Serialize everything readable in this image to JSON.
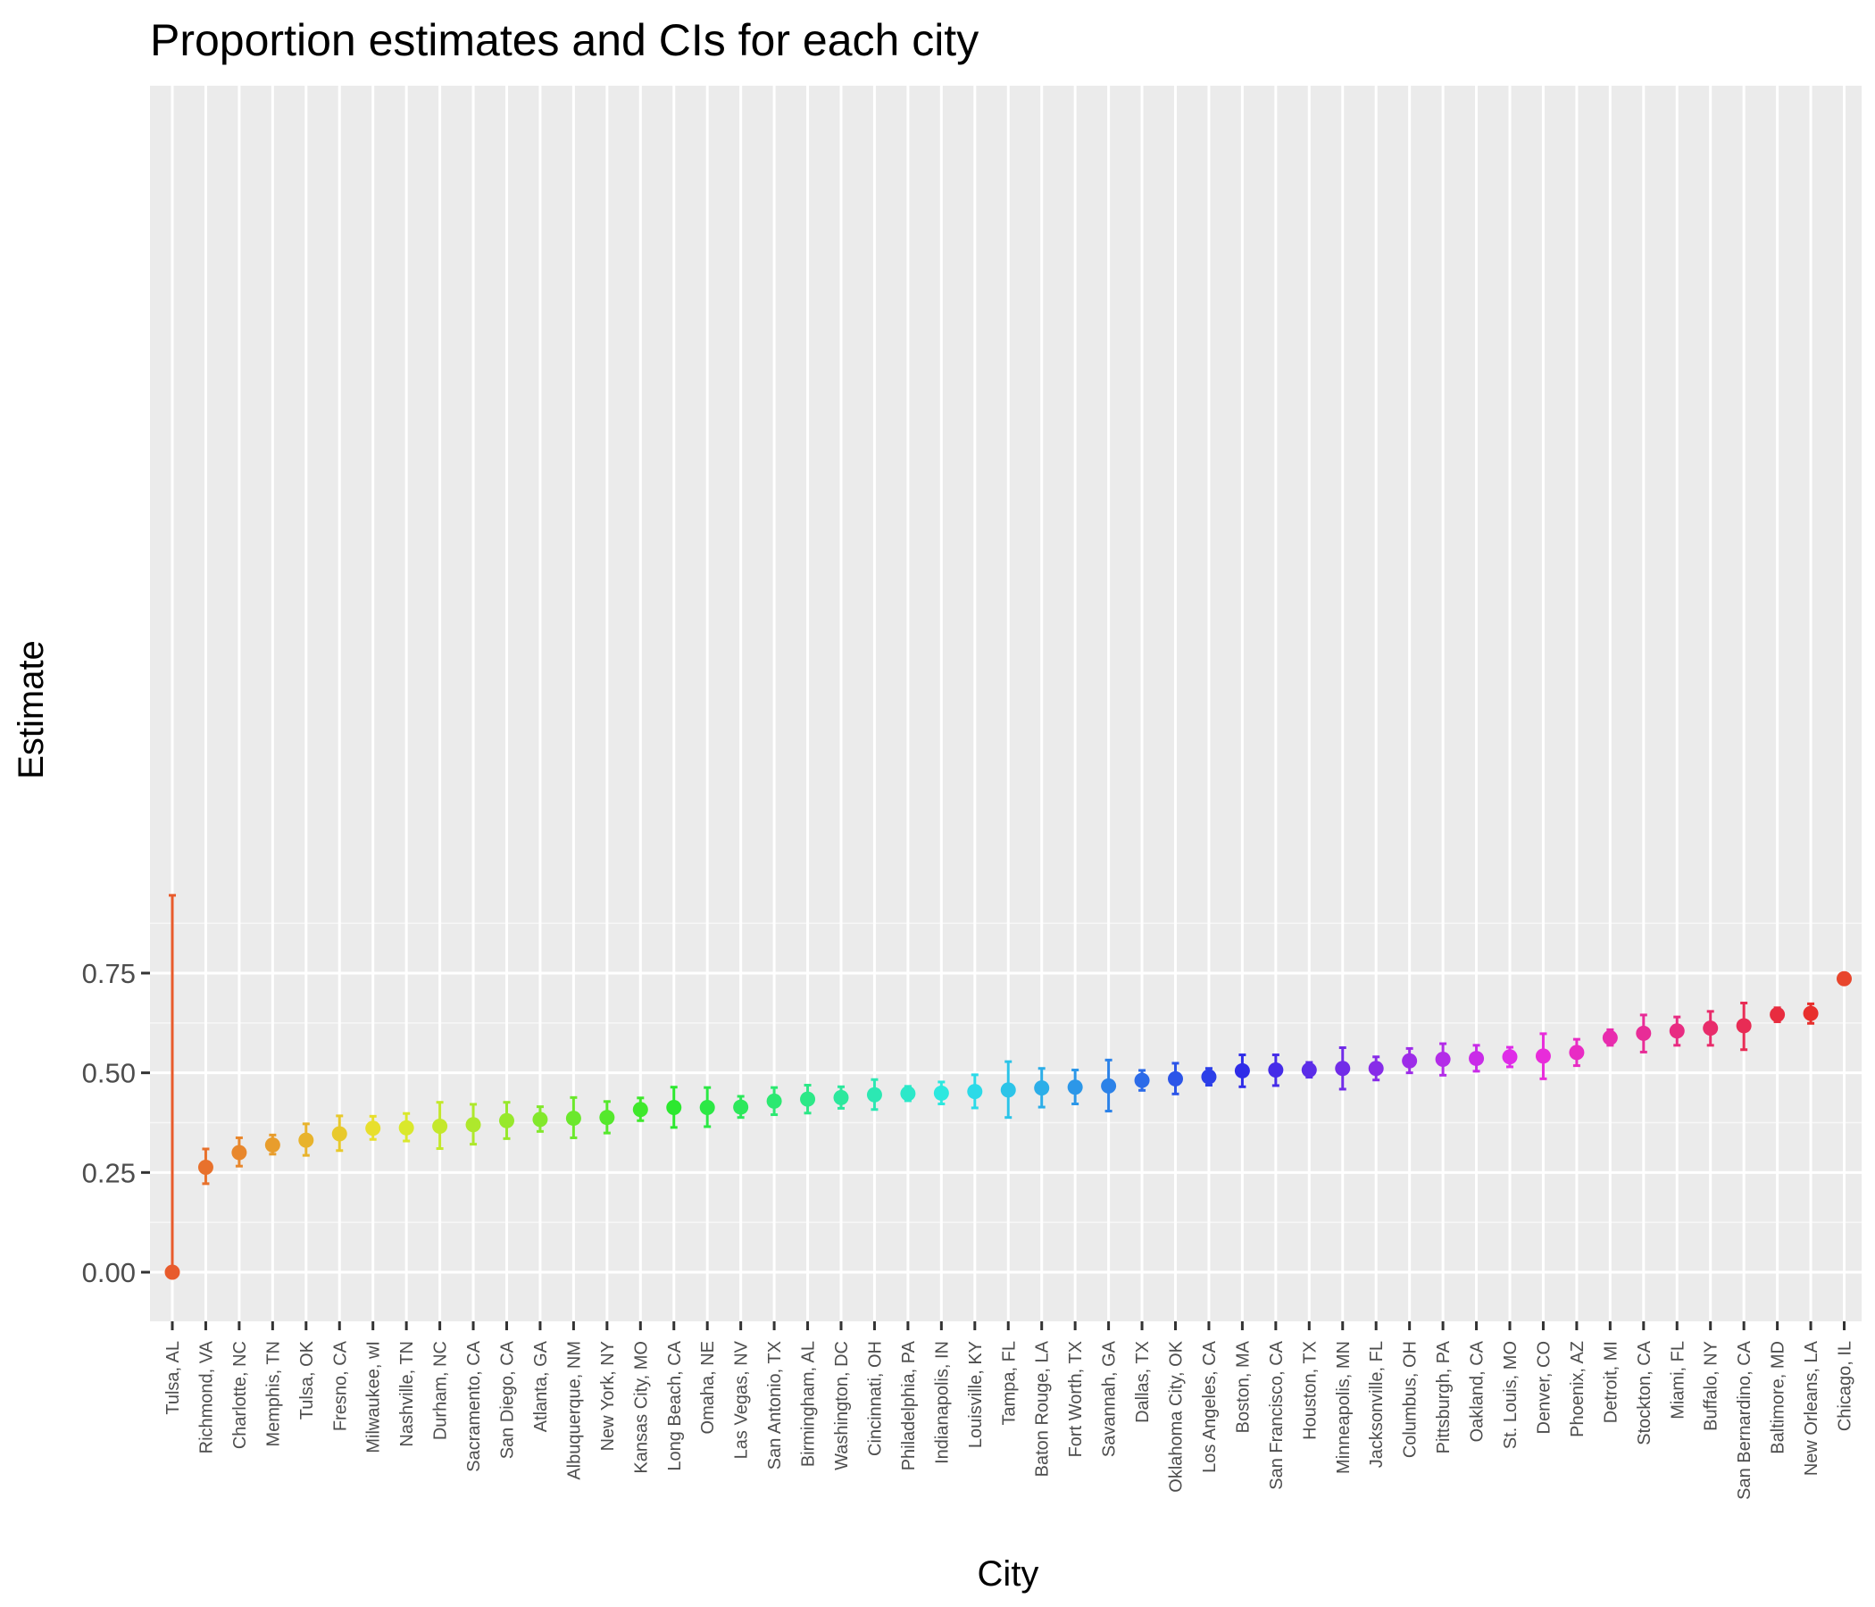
{
  "chart_data": {
    "type": "scatter",
    "title": "Proportion estimates and CIs for each city",
    "xlabel": "City",
    "ylabel": "Estimate",
    "ylim": [
      -0.07,
      0.95
    ],
    "yticks": [
      0.0,
      0.25,
      0.5,
      0.75
    ],
    "ytick_labels": [
      "0.00",
      "0.25",
      "0.50",
      "0.75"
    ],
    "grid": true,
    "legend": "none",
    "points": [
      {
        "city": "Tulsa, AL",
        "estimate": 0.0,
        "lower": 0.0,
        "upper": 0.945
      },
      {
        "city": "Richmond, VA",
        "estimate": 0.263,
        "lower": 0.222,
        "upper": 0.309
      },
      {
        "city": "Charlotte, NC",
        "estimate": 0.3,
        "lower": 0.266,
        "upper": 0.337
      },
      {
        "city": "Memphis, TN",
        "estimate": 0.319,
        "lower": 0.296,
        "upper": 0.344
      },
      {
        "city": "Tulsa, OK",
        "estimate": 0.331,
        "lower": 0.293,
        "upper": 0.372
      },
      {
        "city": "Fresno, CA",
        "estimate": 0.347,
        "lower": 0.305,
        "upper": 0.392
      },
      {
        "city": "Milwaukee, wI",
        "estimate": 0.361,
        "lower": 0.333,
        "upper": 0.391
      },
      {
        "city": "Nashville, TN",
        "estimate": 0.362,
        "lower": 0.329,
        "upper": 0.398
      },
      {
        "city": "Durham, NC",
        "estimate": 0.366,
        "lower": 0.31,
        "upper": 0.426
      },
      {
        "city": "Sacramento, CA",
        "estimate": 0.37,
        "lower": 0.321,
        "upper": 0.421
      },
      {
        "city": "San Diego, CA",
        "estimate": 0.38,
        "lower": 0.335,
        "upper": 0.426
      },
      {
        "city": "Atlanta, GA",
        "estimate": 0.383,
        "lower": 0.353,
        "upper": 0.415
      },
      {
        "city": "Albuquerque, NM",
        "estimate": 0.386,
        "lower": 0.337,
        "upper": 0.438
      },
      {
        "city": "New York, NY",
        "estimate": 0.388,
        "lower": 0.349,
        "upper": 0.428
      },
      {
        "city": "Kansas City, MO",
        "estimate": 0.408,
        "lower": 0.38,
        "upper": 0.437
      },
      {
        "city": "Long Beach, CA",
        "estimate": 0.413,
        "lower": 0.363,
        "upper": 0.464
      },
      {
        "city": "Omaha, NE",
        "estimate": 0.413,
        "lower": 0.365,
        "upper": 0.463
      },
      {
        "city": "Las Vegas, NV",
        "estimate": 0.414,
        "lower": 0.388,
        "upper": 0.441
      },
      {
        "city": "San Antonio, TX",
        "estimate": 0.429,
        "lower": 0.395,
        "upper": 0.463
      },
      {
        "city": "Birmingham, AL",
        "estimate": 0.434,
        "lower": 0.399,
        "upper": 0.469
      },
      {
        "city": "Washington, DC",
        "estimate": 0.438,
        "lower": 0.411,
        "upper": 0.465
      },
      {
        "city": "Cincinnati, OH",
        "estimate": 0.445,
        "lower": 0.408,
        "upper": 0.483
      },
      {
        "city": "Philadelphia, PA",
        "estimate": 0.448,
        "lower": 0.43,
        "upper": 0.466
      },
      {
        "city": "Indianapolis, IN",
        "estimate": 0.449,
        "lower": 0.422,
        "upper": 0.477
      },
      {
        "city": "Louisville, KY",
        "estimate": 0.453,
        "lower": 0.412,
        "upper": 0.495
      },
      {
        "city": "Tampa, FL",
        "estimate": 0.457,
        "lower": 0.388,
        "upper": 0.528
      },
      {
        "city": "Baton Rouge, LA",
        "estimate": 0.462,
        "lower": 0.414,
        "upper": 0.511
      },
      {
        "city": "Fort Worth, TX",
        "estimate": 0.464,
        "lower": 0.422,
        "upper": 0.507
      },
      {
        "city": "Savannah, GA",
        "estimate": 0.467,
        "lower": 0.404,
        "upper": 0.532
      },
      {
        "city": "Dallas, TX",
        "estimate": 0.481,
        "lower": 0.456,
        "upper": 0.506
      },
      {
        "city": "Oklahoma City, OK",
        "estimate": 0.485,
        "lower": 0.447,
        "upper": 0.524
      },
      {
        "city": "Los Angeles, CA",
        "estimate": 0.49,
        "lower": 0.469,
        "upper": 0.511
      },
      {
        "city": "Boston, MA",
        "estimate": 0.505,
        "lower": 0.465,
        "upper": 0.545
      },
      {
        "city": "San Francisco, CA",
        "estimate": 0.507,
        "lower": 0.468,
        "upper": 0.545
      },
      {
        "city": "Houston, TX",
        "estimate": 0.507,
        "lower": 0.489,
        "upper": 0.526
      },
      {
        "city": "Minneapolis, MN",
        "estimate": 0.511,
        "lower": 0.459,
        "upper": 0.563
      },
      {
        "city": "Jacksonville, FL",
        "estimate": 0.511,
        "lower": 0.482,
        "upper": 0.54
      },
      {
        "city": "Columbus, OH",
        "estimate": 0.53,
        "lower": 0.5,
        "upper": 0.561
      },
      {
        "city": "Pittsburgh, PA",
        "estimate": 0.534,
        "lower": 0.494,
        "upper": 0.573
      },
      {
        "city": "Oakland, CA",
        "estimate": 0.536,
        "lower": 0.504,
        "upper": 0.569
      },
      {
        "city": "St. Louis, MO",
        "estimate": 0.54,
        "lower": 0.515,
        "upper": 0.564
      },
      {
        "city": "Denver, CO",
        "estimate": 0.542,
        "lower": 0.485,
        "upper": 0.598
      },
      {
        "city": "Phoenix, AZ",
        "estimate": 0.551,
        "lower": 0.518,
        "upper": 0.584
      },
      {
        "city": "Detroit, MI",
        "estimate": 0.588,
        "lower": 0.569,
        "upper": 0.608
      },
      {
        "city": "Stockton, CA",
        "estimate": 0.599,
        "lower": 0.552,
        "upper": 0.645
      },
      {
        "city": "Miami, FL",
        "estimate": 0.605,
        "lower": 0.569,
        "upper": 0.64
      },
      {
        "city": "Buffalo, NY",
        "estimate": 0.612,
        "lower": 0.569,
        "upper": 0.654
      },
      {
        "city": "San Bernardino, CA",
        "estimate": 0.618,
        "lower": 0.558,
        "upper": 0.675
      },
      {
        "city": "Baltimore, MD",
        "estimate": 0.646,
        "lower": 0.628,
        "upper": 0.663
      },
      {
        "city": "New Orleans, LA",
        "estimate": 0.649,
        "lower": 0.624,
        "upper": 0.673
      },
      {
        "city": "Chicago, IL",
        "estimate": 0.736,
        "lower": 0.724,
        "upper": 0.747
      }
    ]
  }
}
